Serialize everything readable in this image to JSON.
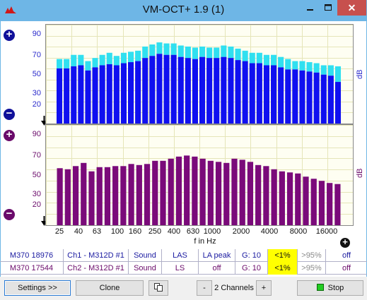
{
  "window": {
    "title": "VM-OCT+ 1.9 (1)",
    "close_glyph": "✕",
    "colors": {
      "titlebar": "#6eb6e6",
      "close": "#c7504e"
    }
  },
  "top_plot": {
    "yticks": [
      "90",
      "70",
      "50",
      "30",
      "20"
    ],
    "ylabel": "dB",
    "bar_color": "#1010f0",
    "cap_color": "#30e0f0",
    "upper": [
      72,
      72,
      76,
      76,
      70,
      73,
      76,
      78,
      75,
      78,
      79,
      80,
      84,
      86,
      88,
      87,
      87,
      85,
      84,
      83,
      84,
      83,
      83,
      85,
      84,
      82,
      80,
      78,
      78,
      76,
      76,
      74,
      72,
      70,
      70,
      69,
      68,
      66,
      66,
      65
    ],
    "lower": [
      63,
      63,
      65,
      66,
      61,
      64,
      66,
      67,
      66,
      68,
      69,
      70,
      73,
      75,
      77,
      76,
      76,
      74,
      73,
      72,
      74,
      73,
      73,
      74,
      73,
      71,
      70,
      68,
      68,
      66,
      66,
      64,
      62,
      62,
      61,
      60,
      59,
      57,
      56,
      50
    ]
  },
  "bottom_plot": {
    "yticks": [
      "90",
      "70",
      "50",
      "30",
      "20"
    ],
    "ylabel": "dB",
    "bar_color": "#7a0a7a",
    "values": [
      64,
      63,
      66,
      69,
      61,
      65,
      65,
      66,
      66,
      68,
      67,
      68,
      71,
      71,
      73,
      75,
      76,
      75,
      73,
      71,
      70,
      69,
      73,
      72,
      70,
      67,
      66,
      63,
      61,
      60,
      59,
      56,
      54,
      52,
      50,
      49
    ]
  },
  "x_axis": {
    "label": "f in Hz",
    "ticks": [
      "25",
      "40",
      "63",
      "100",
      "160",
      "250",
      "400",
      "630",
      "1000",
      "2000",
      "4000",
      "8000",
      "16000"
    ]
  },
  "controls": {
    "plus_glyph": "+",
    "minus_glyph": "−",
    "arrow_glyph": "▼"
  },
  "status_rows": [
    {
      "meter": "M370 18976",
      "channel": "Ch1 - M312D #1",
      "mode": "Sound",
      "weighting": "LAS",
      "peak": "LA peak",
      "gain": "G: 10",
      "low": "<1%",
      "high": ">95%",
      "state": "off"
    },
    {
      "meter": "M370 17544",
      "channel": "Ch2 - M312D #1",
      "mode": "Sound",
      "weighting": "LS",
      "peak": "off",
      "gain": "G: 10",
      "low": "<1%",
      "high": ">95%",
      "state": "off"
    }
  ],
  "buttons": {
    "settings": "Settings >>",
    "clone": "Clone",
    "minus": "-",
    "channels": "2 Channels",
    "plus": "+",
    "stop": "Stop"
  }
}
